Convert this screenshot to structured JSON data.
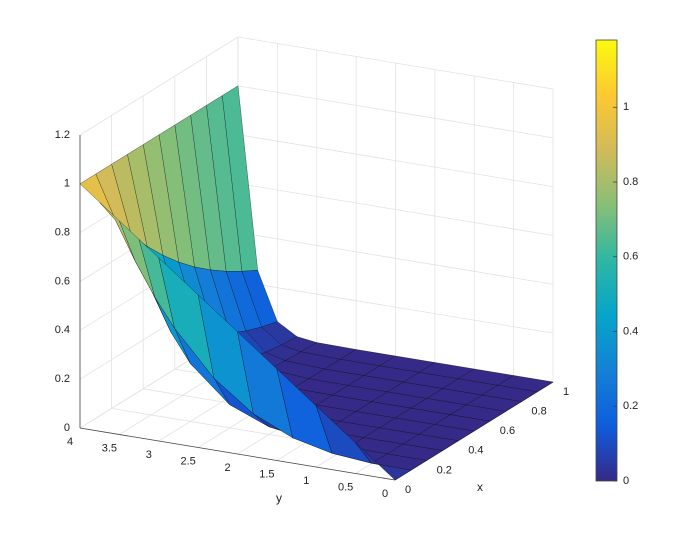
{
  "chart_data": {
    "type": "surface",
    "x_label": "x",
    "y_label": "y",
    "x": [
      0,
      0.1,
      0.2,
      0.3,
      0.4,
      0.5,
      0.6,
      0.7,
      0.8,
      0.9,
      1
    ],
    "y": [
      0,
      0.5,
      1,
      1.5,
      2,
      2.5,
      3,
      3.25,
      3.5,
      3.75,
      4
    ],
    "z": [
      [
        0,
        0.125,
        0.25,
        0.375,
        0.5,
        0.625,
        0.75,
        0.8125,
        0.875,
        0.9375,
        1
      ],
      [
        0,
        0.002,
        0.016,
        0.053,
        0.125,
        0.244,
        0.422,
        0.536,
        0.67,
        0.824,
        1
      ],
      [
        0,
        0,
        0.001,
        0.007,
        0.031,
        0.095,
        0.237,
        0.354,
        0.513,
        0.724,
        1
      ],
      [
        0,
        0,
        0,
        0.001,
        0.008,
        0.037,
        0.133,
        0.234,
        0.393,
        0.637,
        1
      ],
      [
        0,
        0,
        0,
        0,
        0.002,
        0.015,
        0.075,
        0.154,
        0.301,
        0.56,
        1
      ],
      [
        0,
        0,
        0,
        0,
        0,
        0.006,
        0.042,
        0.102,
        0.23,
        0.492,
        1
      ],
      [
        0,
        0,
        0,
        0,
        0,
        0.002,
        0.024,
        0.067,
        0.176,
        0.432,
        1
      ],
      [
        0,
        0,
        0,
        0,
        0,
        0.001,
        0.013,
        0.044,
        0.135,
        0.38,
        1
      ],
      [
        0,
        0,
        0,
        0,
        0,
        0,
        0.008,
        0.029,
        0.103,
        0.334,
        1
      ],
      [
        0,
        0,
        0,
        0,
        0,
        0,
        0.004,
        0.019,
        0.079,
        0.294,
        1
      ],
      [
        0,
        0,
        0,
        0,
        0,
        0,
        0.002,
        0.013,
        0.061,
        0.258,
        1
      ]
    ],
    "xlim": [
      0,
      1
    ],
    "xticks": [
      0,
      0.2,
      0.4,
      0.6,
      0.8,
      1
    ],
    "ylim": [
      0,
      4
    ],
    "yticks": [
      0,
      0.5,
      1,
      1.5,
      2,
      2.5,
      3,
      3.5,
      4
    ],
    "zlim": [
      0,
      1.2
    ],
    "zticks": [
      0,
      0.2,
      0.4,
      0.6,
      0.8,
      1,
      1.2
    ],
    "clim": [
      0,
      1.18
    ],
    "cticks": [
      0,
      0.2,
      0.4,
      0.6,
      0.8,
      1
    ],
    "colormap": [
      "#352a87",
      "#0f5cdd",
      "#1481d6",
      "#06a4ca",
      "#2eb7a4",
      "#87bf77",
      "#d1bb59",
      "#fec832",
      "#f9fb0e"
    ],
    "edge_color": "#000000",
    "grid": true
  }
}
